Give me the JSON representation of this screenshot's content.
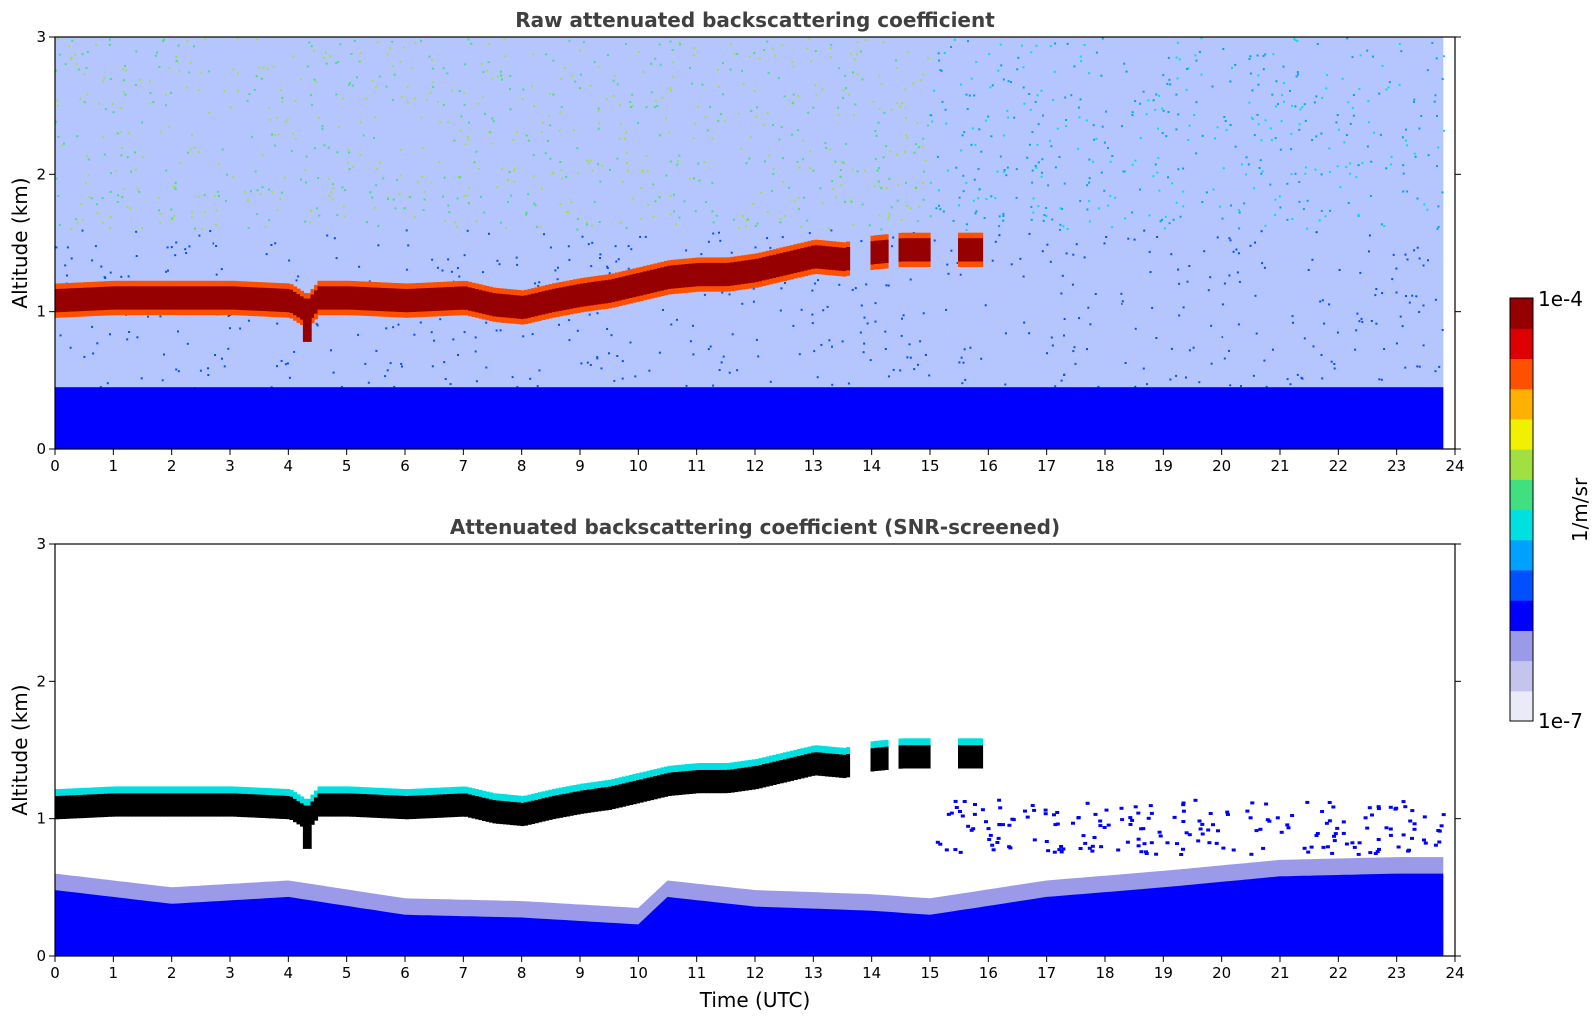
{
  "chart_data": [
    {
      "type": "heatmap",
      "title": "Raw attenuated backscattering coefficient",
      "xlabel": "",
      "ylabel": "Altitude (km)",
      "xlim": [
        0,
        24
      ],
      "ylim": [
        0,
        3
      ],
      "x_ticks": [
        "0",
        "1",
        "2",
        "3",
        "4",
        "5",
        "6",
        "7",
        "8",
        "9",
        "10",
        "11",
        "12",
        "13",
        "14",
        "15",
        "16",
        "17",
        "18",
        "19",
        "20",
        "21",
        "22",
        "23",
        "24"
      ],
      "y_ticks": [
        "0",
        "1",
        "2",
        "3"
      ],
      "data_extent_x": [
        0,
        23.8
      ],
      "cloud_layer": {
        "time": [
          0,
          1,
          2,
          3,
          4,
          4.3,
          4.5,
          5,
          6,
          7,
          7.5,
          8,
          8.5,
          9,
          9.5,
          10,
          10.5,
          11,
          11.5,
          12,
          12.5,
          13,
          13.5,
          14,
          14.5,
          15,
          15.5,
          15.9
        ],
        "altitude_km": [
          1.08,
          1.1,
          1.1,
          1.1,
          1.08,
          1.0,
          1.1,
          1.1,
          1.08,
          1.1,
          1.05,
          1.03,
          1.08,
          1.12,
          1.15,
          1.2,
          1.25,
          1.27,
          1.27,
          1.3,
          1.35,
          1.4,
          1.38,
          1.43,
          1.45,
          1.45,
          1.45,
          1.45
        ]
      },
      "near_surface_layer_top_km": 0.45,
      "colorbar": {
        "label": "1/m/sr",
        "min_label": "1e-7",
        "max_label": "1e-4",
        "scale": "log"
      }
    },
    {
      "type": "heatmap",
      "title": "Attenuated backscattering coefficient (SNR-screened)",
      "xlabel": "Time (UTC)",
      "ylabel": "Altitude (km)",
      "xlim": [
        0,
        24
      ],
      "ylim": [
        0,
        3
      ],
      "x_ticks": [
        "0",
        "1",
        "2",
        "3",
        "4",
        "5",
        "6",
        "7",
        "8",
        "9",
        "10",
        "11",
        "12",
        "13",
        "14",
        "15",
        "16",
        "17",
        "18",
        "19",
        "20",
        "21",
        "22",
        "23",
        "24"
      ],
      "y_ticks": [
        "0",
        "1",
        "2",
        "3"
      ],
      "data_extent_x": [
        0,
        23.8
      ],
      "cloud_layer_same_as_raw": true,
      "surface_layer_top": {
        "time": [
          0,
          2,
          4,
          6,
          8,
          10,
          10.5,
          12,
          14,
          15,
          17,
          19,
          21,
          23,
          23.8
        ],
        "altitude_km": [
          0.6,
          0.5,
          0.55,
          0.42,
          0.4,
          0.35,
          0.55,
          0.48,
          0.45,
          0.42,
          0.55,
          0.62,
          0.7,
          0.72,
          0.72
        ]
      }
    }
  ],
  "colors": {
    "colorbar_stops": [
      "#ebebf8",
      "#c4c4ee",
      "#9a9ae8",
      "#0000ff",
      "#0050ff",
      "#00a0ff",
      "#00e0e0",
      "#40e080",
      "#a0e040",
      "#f0f000",
      "#ffb000",
      "#ff5000",
      "#dc0000",
      "#960000"
    ],
    "cloud_core": "#960000",
    "masked_cloud_core": "#000000",
    "background": "#ffffff"
  }
}
